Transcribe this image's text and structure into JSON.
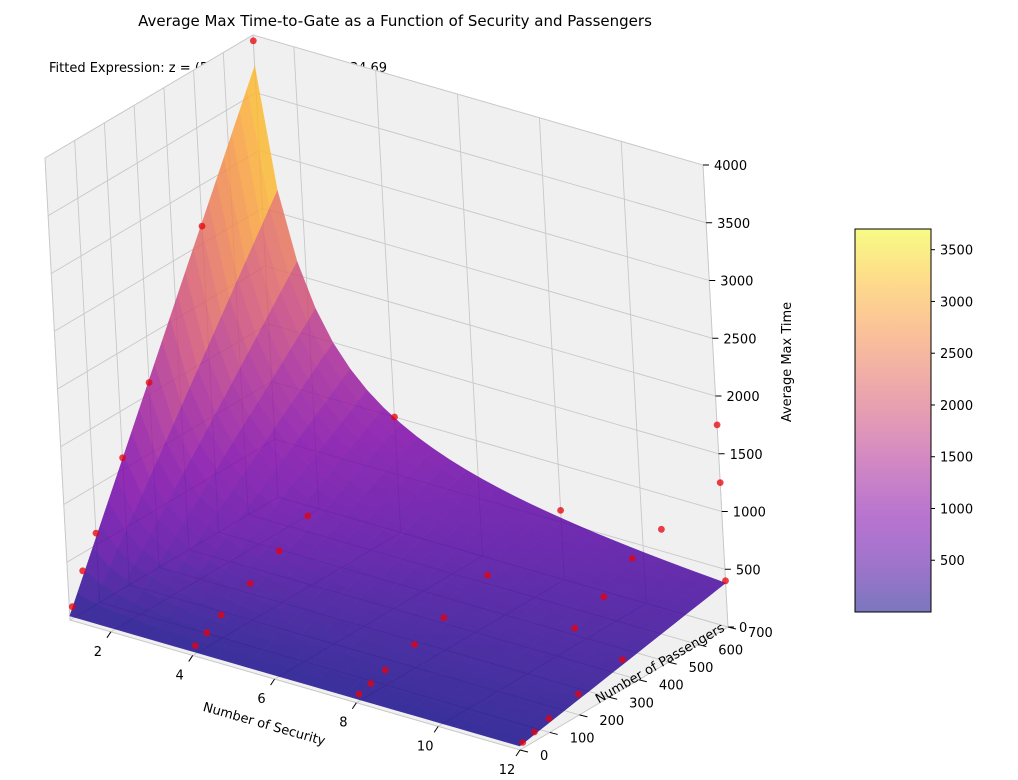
{
  "chart_data": {
    "type": "surface3d",
    "title": "Average Max Time-to-Gate as a Function of Security and Passengers",
    "subtitle": "Fitted Expression: z = (5.22*y) / x + 0.06*y + 34.69",
    "xlabel": "Number of Security",
    "ylabel": "Number of Passengers",
    "zlabel": "Average Max Time",
    "x_ticks": [
      2,
      4,
      6,
      8,
      10,
      12
    ],
    "y_ticks": [
      0,
      100,
      200,
      300,
      400,
      500,
      600,
      700
    ],
    "z_ticks": [
      0,
      500,
      1000,
      1500,
      2000,
      2500,
      3000,
      3500,
      4000
    ],
    "xlim": [
      1,
      12
    ],
    "ylim": [
      0,
      700
    ],
    "zlim": [
      0,
      4000
    ],
    "surface": {
      "expression": "z = (5.22*y) / x + 0.06*y + 34.69",
      "coefficients": {
        "a": 5.22,
        "b": 0.06,
        "c": 34.69
      },
      "colormap": "plasma",
      "alpha": 0.55
    },
    "colorbar": {
      "ticks": [
        500,
        1000,
        1500,
        2000,
        2500,
        3000,
        3500
      ],
      "range": [
        0,
        3700
      ]
    },
    "grid": true,
    "scatter": {
      "color": "#e8000b",
      "points": [
        {
          "x": 1,
          "y": 700,
          "z": 3950
        },
        {
          "x": 1,
          "y": 500,
          "z": 2650
        },
        {
          "x": 1,
          "y": 300,
          "z": 1600
        },
        {
          "x": 1,
          "y": 200,
          "z": 1100
        },
        {
          "x": 1,
          "y": 100,
          "z": 600
        },
        {
          "x": 1,
          "y": 50,
          "z": 350
        },
        {
          "x": 1,
          "y": 10,
          "z": 100
        },
        {
          "x": 4,
          "y": 700,
          "z": 1000
        },
        {
          "x": 4,
          "y": 400,
          "z": 600
        },
        {
          "x": 4,
          "y": 300,
          "z": 450
        },
        {
          "x": 4,
          "y": 200,
          "z": 320
        },
        {
          "x": 4,
          "y": 100,
          "z": 200
        },
        {
          "x": 4,
          "y": 50,
          "z": 120
        },
        {
          "x": 4,
          "y": 10,
          "z": 70
        },
        {
          "x": 8,
          "y": 700,
          "z": 600
        },
        {
          "x": 8,
          "y": 450,
          "z": 420
        },
        {
          "x": 8,
          "y": 300,
          "z": 280
        },
        {
          "x": 8,
          "y": 200,
          "z": 200
        },
        {
          "x": 8,
          "y": 100,
          "z": 130
        },
        {
          "x": 8,
          "y": 50,
          "z": 90
        },
        {
          "x": 8,
          "y": 10,
          "z": 60
        },
        {
          "x": 12,
          "y": 700,
          "z": 400
        },
        {
          "x": 12,
          "y": 350,
          "z": 250
        },
        {
          "x": 12,
          "y": 200,
          "z": 180
        },
        {
          "x": 12,
          "y": 100,
          "z": 120
        },
        {
          "x": 12,
          "y": 50,
          "z": 80
        },
        {
          "x": 12,
          "y": 10,
          "z": 50
        },
        {
          "x": 12,
          "y": 700,
          "z": 1750
        },
        {
          "x": 12,
          "y": 700,
          "z": 1250
        },
        {
          "x": 12,
          "y": 500,
          "z": 1150
        },
        {
          "x": 12,
          "y": 400,
          "z": 1050
        },
        {
          "x": 12,
          "y": 300,
          "z": 870
        },
        {
          "x": 12,
          "y": 200,
          "z": 750
        }
      ]
    }
  }
}
